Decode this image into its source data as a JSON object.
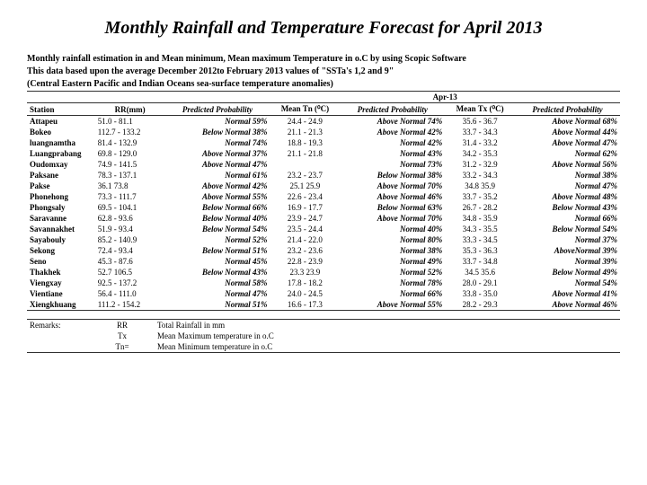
{
  "title": "Monthly Rainfall and Temperature Forecast for April 2013",
  "preface": [
    "Monthly rainfall estimation in  and Mean minimum, Mean maximum Temperature in o.C by using Scopic Software",
    "This data based upon the average  December 2012to February 2013 values of \"SSTa's 1,2 and 9\"",
    "(Central Eastern Pacific and Indian Oceans sea-surface temperature anomalies)"
  ],
  "period": "Apr-13",
  "headers": {
    "station": "Station",
    "rr": "RR(mm)",
    "prob1": "Predicted Probability",
    "tn": "Mean Tn (⁰C)",
    "prob2": "Predicted Probability",
    "tx": "Mean Tx (⁰C)",
    "prob3": "Predicted Probability"
  },
  "rows": [
    {
      "s": "Attapeu",
      "rr": "51.0 - 81.1",
      "p1": "Normal 59%",
      "tn": "24.4 - 24.9",
      "p2": "Above Normal 74%",
      "tx": "35.6 - 36.7",
      "p3": "Above Normal 68%"
    },
    {
      "s": "Bokeo",
      "rr": "112.7 - 133.2",
      "p1": "Below Normal 38%",
      "tn": "21.1 - 21.3",
      "p2": "Above Normal 42%",
      "tx": "33.7 - 34.3",
      "p3": "Above  Normal 44%"
    },
    {
      "s": "luangnamtha",
      "rr": "81.4 - 132.9",
      "p1": "Normal 74%",
      "tn": "18.8 - 19.3",
      "p2": "Normal 42%",
      "tx": "31.4 - 33.2",
      "p3": "Above Normal 47%"
    },
    {
      "s": "Luangprabang",
      "rr": "69.8 - 129.0",
      "p1": "Above Normal 37%",
      "tn": "21.1 - 21.8",
      "p2": "Normal 43%",
      "tx": "34.2 - 35.3",
      "p3": "Normal 62%"
    },
    {
      "s": "Oudomxay",
      "rr": "74.9 - 141.5",
      "p1": "Above Normal 47%",
      "tn": "",
      "p2": "Normal 73%",
      "tx": "31.2 - 32.9",
      "p3": "Above Normal 56%"
    },
    {
      "s": "Paksane",
      "rr": "78.3 - 137.1",
      "p1": "Normal 61%",
      "tn": "23.2 - 23.7",
      "p2": "Below Normal 38%",
      "tx": "33.2 - 34.3",
      "p3": "Normal 38%"
    },
    {
      "s": "Pakse",
      "rr": "36.1   73.8",
      "p1": "Above Normal 42%",
      "tn": "25.1   25.9",
      "p2": "Above Normal 70%",
      "tx": "34.8   35.9",
      "p3": "Normal 47%"
    },
    {
      "s": "Phonehong",
      "rr": "73.3 - 111.7",
      "p1": "Above Normal 55%",
      "tn": "22.6 - 23.4",
      "p2": "Above Normal 46%",
      "tx": "33.7 - 35.2",
      "p3": "Above Normal 48%"
    },
    {
      "s": "Phongsaly",
      "rr": "69.5 - 104.1",
      "p1": "Below Normal 66%",
      "tn": "16.9 - 17.7",
      "p2": "Below Normal 63%",
      "tx": "26.7 - 28.2",
      "p3": "Below Normal 43%"
    },
    {
      "s": "Saravanne",
      "rr": "62.8 - 93.6",
      "p1": "Below Normal 40%",
      "tn": "23.9 - 24.7",
      "p2": "Above Normal 70%",
      "tx": "34.8 - 35.9",
      "p3": "Normal 66%"
    },
    {
      "s": "Savannakhet",
      "rr": "51.9 - 93.4",
      "p1": "Below Normal 54%",
      "tn": "23.5 - 24.4",
      "p2": "Normal 40%",
      "tx": "34.3 - 35.5",
      "p3": "Below Normal 54%"
    },
    {
      "s": "Sayabouly",
      "rr": "85.2 - 140.9",
      "p1": "Normal 52%",
      "tn": "21.4 - 22.0",
      "p2": "Normal 80%",
      "tx": "33.3 - 34.5",
      "p3": "Normal 37%"
    },
    {
      "s": "Sekong",
      "rr": "72.4 - 93.4",
      "p1": "Below Normal 51%",
      "tn": "23.2 - 23.6",
      "p2": "Normal 38%",
      "tx": "35.3 - 36.3",
      "p3": "AboveNormal 39%"
    },
    {
      "s": "Seno",
      "rr": "45.3 - 87.6",
      "p1": "Normal 45%",
      "tn": "22.8 - 23.9",
      "p2": "Normal 49%",
      "tx": "33.7 - 34.8",
      "p3": "Normal 39%"
    },
    {
      "s": "Thakhek",
      "rr": "52.7   106.5",
      "p1": "Below Normal 43%",
      "tn": "23.3   23.9",
      "p2": "Normal 52%",
      "tx": "34.5   35.6",
      "p3": "Below Normal 49%"
    },
    {
      "s": "Viengxay",
      "rr": "92.5 - 137.2",
      "p1": "Normal 58%",
      "tn": "17.8 - 18.2",
      "p2": "Normal 78%",
      "tx": "28.0 - 29.1",
      "p3": "Normal 54%"
    },
    {
      "s": "Vientiane",
      "rr": "56.4 - 111.0",
      "p1": "Normal 47%",
      "tn": "24.0 - 24.5",
      "p2": "Normal 66%",
      "tx": "33.8 - 35.0",
      "p3": "Above Normal 41%"
    },
    {
      "s": "Xiengkhuang",
      "rr": "111.2 - 154.2",
      "p1": "Normal 51%",
      "tn": "16.6 - 17.3",
      "p2": "Above Normal 55%",
      "tx": "28.2 - 29.3",
      "p3": "Above Normal 46%"
    }
  ],
  "remarks": {
    "label": "Remarks:",
    "items": [
      {
        "k": "RR",
        "v": "Total Rainfall in mm"
      },
      {
        "k": "Tx",
        "v": "Mean Maximum temperature in o.C"
      },
      {
        "k": "Tn=",
        "v": "Mean Minimum temperature in o.C"
      }
    ]
  }
}
